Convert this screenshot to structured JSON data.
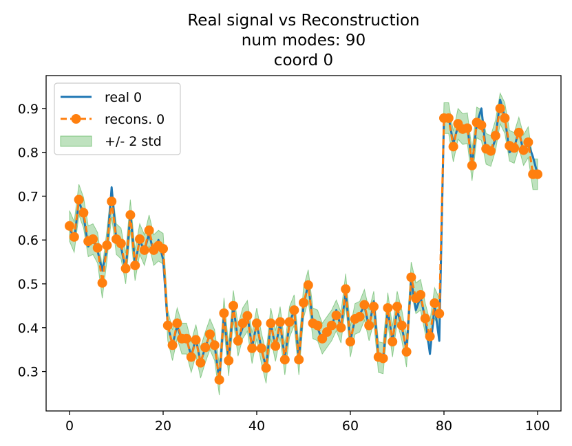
{
  "chart_data": {
    "type": "line",
    "title_lines": [
      "Real signal vs Reconstruction",
      "num modes: 90",
      "coord 0"
    ],
    "xlabel": "",
    "ylabel": "",
    "xlim": [
      -5,
      105
    ],
    "ylim": [
      0.21,
      0.975
    ],
    "xticks": [
      0,
      20,
      40,
      60,
      80,
      100
    ],
    "yticks": [
      0.3,
      0.4,
      0.5,
      0.6,
      0.7,
      0.8,
      0.9
    ],
    "legend": {
      "position": "top-left",
      "entries": [
        {
          "label": "real 0",
          "style": "line",
          "color": "#1f77b4"
        },
        {
          "label": "recons. 0",
          "style": "dashed-marker",
          "color": "#ff7f0e"
        },
        {
          "label": "+/- 2 std",
          "style": "band",
          "color": "#2ca02c"
        }
      ]
    },
    "x": [
      0,
      1,
      2,
      3,
      4,
      5,
      6,
      7,
      8,
      9,
      10,
      11,
      12,
      13,
      14,
      15,
      16,
      17,
      18,
      19,
      20,
      21,
      22,
      23,
      24,
      25,
      26,
      27,
      28,
      29,
      30,
      31,
      32,
      33,
      34,
      35,
      36,
      37,
      38,
      39,
      40,
      41,
      42,
      43,
      44,
      45,
      46,
      47,
      48,
      49,
      50,
      51,
      52,
      53,
      54,
      55,
      56,
      57,
      58,
      59,
      60,
      61,
      62,
      63,
      64,
      65,
      66,
      67,
      68,
      69,
      70,
      71,
      72,
      73,
      74,
      75,
      76,
      77,
      78,
      79,
      80,
      81,
      82,
      83,
      84,
      85,
      86,
      87,
      88,
      89,
      90,
      91,
      92,
      93,
      94,
      95,
      96,
      97,
      98,
      99,
      100
    ],
    "series": [
      {
        "name": "real 0",
        "color": "#1f77b4",
        "values": [
          0.63,
          0.6,
          0.69,
          0.655,
          0.585,
          0.605,
          0.575,
          0.53,
          0.58,
          0.72,
          0.6,
          0.585,
          0.53,
          0.66,
          0.545,
          0.6,
          0.575,
          0.615,
          0.57,
          0.6,
          0.555,
          0.405,
          0.36,
          0.405,
          0.37,
          0.375,
          0.335,
          0.375,
          0.32,
          0.355,
          0.385,
          0.36,
          0.28,
          0.43,
          0.325,
          0.45,
          0.37,
          0.4,
          0.43,
          0.355,
          0.41,
          0.35,
          0.31,
          0.41,
          0.355,
          0.41,
          0.33,
          0.41,
          0.44,
          0.33,
          0.45,
          0.5,
          0.41,
          0.4,
          0.37,
          0.39,
          0.4,
          0.44,
          0.4,
          0.48,
          0.37,
          0.42,
          0.43,
          0.45,
          0.4,
          0.46,
          0.335,
          0.33,
          0.44,
          0.37,
          0.44,
          0.4,
          0.35,
          0.51,
          0.44,
          0.47,
          0.42,
          0.34,
          0.45,
          0.37,
          0.88,
          0.88,
          0.82,
          0.86,
          0.85,
          0.86,
          0.77,
          0.865,
          0.9,
          0.8,
          0.8,
          0.83,
          0.92,
          0.88,
          0.8,
          0.81,
          0.85,
          0.8,
          0.82,
          0.79,
          0.75
        ]
      },
      {
        "name": "recons. 0",
        "color": "#ff7f0e",
        "values": [
          0.632,
          0.607,
          0.692,
          0.662,
          0.597,
          0.602,
          0.582,
          0.502,
          0.588,
          0.688,
          0.602,
          0.592,
          0.535,
          0.657,
          0.542,
          0.602,
          0.577,
          0.622,
          0.577,
          0.587,
          0.58,
          0.405,
          0.36,
          0.41,
          0.375,
          0.375,
          0.333,
          0.372,
          0.32,
          0.355,
          0.385,
          0.36,
          0.281,
          0.433,
          0.325,
          0.45,
          0.37,
          0.41,
          0.427,
          0.353,
          0.41,
          0.353,
          0.308,
          0.41,
          0.358,
          0.413,
          0.327,
          0.413,
          0.44,
          0.327,
          0.457,
          0.497,
          0.41,
          0.405,
          0.375,
          0.39,
          0.405,
          0.428,
          0.4,
          0.488,
          0.368,
          0.42,
          0.425,
          0.452,
          0.405,
          0.448,
          0.333,
          0.33,
          0.445,
          0.368,
          0.448,
          0.405,
          0.345,
          0.515,
          0.467,
          0.475,
          0.421,
          0.38,
          0.456,
          0.432,
          0.878,
          0.878,
          0.813,
          0.865,
          0.853,
          0.855,
          0.77,
          0.868,
          0.862,
          0.808,
          0.803,
          0.838,
          0.9,
          0.878,
          0.815,
          0.81,
          0.845,
          0.805,
          0.823,
          0.75,
          0.75
        ]
      }
    ],
    "band": {
      "name": "+/- 2 std",
      "color": "#2ca02c",
      "alpha": 0.3,
      "half_width": 0.035
    }
  }
}
